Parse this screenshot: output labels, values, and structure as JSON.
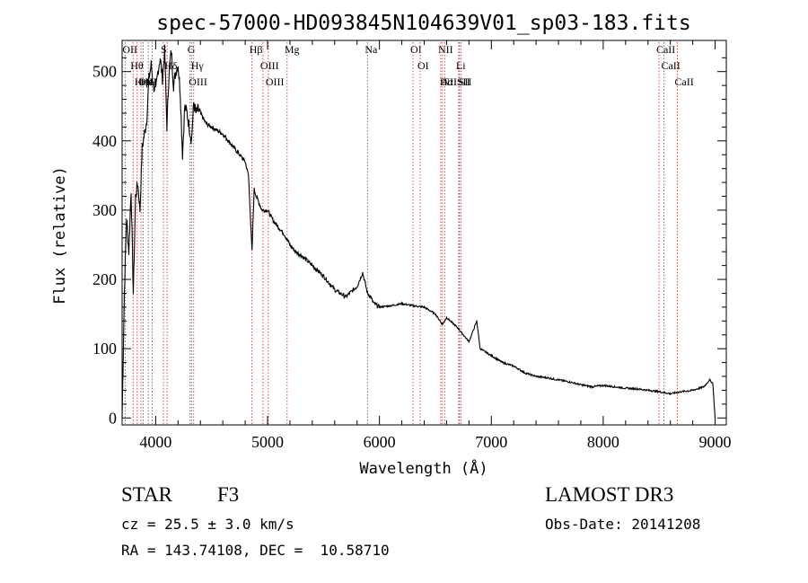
{
  "chart_data": {
    "type": "line",
    "title": "spec-57000-HD093845N104639V01_sp03-183.fits",
    "xlabel": "Wavelength (Å)",
    "ylabel": "Flux (relative)",
    "xlim": [
      3700,
      9100
    ],
    "ylim": [
      -10,
      545
    ],
    "xticks": [
      4000,
      5000,
      6000,
      7000,
      8000,
      9000
    ],
    "yticks": [
      0,
      100,
      200,
      300,
      400,
      500
    ],
    "series": [
      {
        "name": "flux",
        "x": [
          3700,
          3720,
          3740,
          3760,
          3780,
          3800,
          3820,
          3840,
          3860,
          3880,
          3900,
          3920,
          3940,
          3960,
          3980,
          4000,
          4020,
          4040,
          4060,
          4080,
          4100,
          4120,
          4140,
          4160,
          4180,
          4200,
          4220,
          4240,
          4260,
          4280,
          4300,
          4320,
          4340,
          4360,
          4380,
          4400,
          4450,
          4500,
          4550,
          4600,
          4650,
          4700,
          4750,
          4800,
          4830,
          4861,
          4880,
          4900,
          4950,
          5000,
          5050,
          5100,
          5150,
          5200,
          5250,
          5300,
          5400,
          5500,
          5600,
          5700,
          5800,
          5850,
          5893,
          5920,
          5950,
          6000,
          6100,
          6200,
          6300,
          6400,
          6500,
          6563,
          6600,
          6700,
          6800,
          6870,
          6900,
          7000,
          7100,
          7200,
          7300,
          7400,
          7500,
          7600,
          7700,
          7800,
          7900,
          8000,
          8100,
          8200,
          8300,
          8400,
          8500,
          8600,
          8700,
          8800,
          8900,
          8950,
          8980,
          9000
        ],
        "y": [
          0,
          180,
          290,
          240,
          330,
          180,
          320,
          340,
          300,
          390,
          410,
          430,
          490,
          510,
          480,
          470,
          500,
          520,
          490,
          530,
          420,
          500,
          530,
          480,
          500,
          510,
          470,
          380,
          450,
          440,
          420,
          400,
          455,
          440,
          445,
          440,
          425,
          420,
          415,
          410,
          400,
          390,
          380,
          370,
          350,
          240,
          330,
          320,
          300,
          300,
          285,
          275,
          265,
          250,
          240,
          235,
          220,
          205,
          185,
          175,
          190,
          210,
          180,
          175,
          165,
          160,
          162,
          165,
          162,
          160,
          150,
          135,
          145,
          130,
          110,
          140,
          100,
          90,
          80,
          75,
          65,
          60,
          58,
          55,
          52,
          48,
          45,
          47,
          45,
          43,
          42,
          40,
          38,
          35,
          38,
          40,
          45,
          55,
          50,
          0
        ]
      }
    ],
    "lines": [
      {
        "name": "Hθ",
        "wl": 3798
      },
      {
        "name": "OII",
        "wl": 3727
      },
      {
        "name": "OIII",
        "wl": 3869
      },
      {
        "name": "He",
        "wl": 3889
      },
      {
        "name": "Hη",
        "wl": 3835
      },
      {
        "name": "K",
        "wl": 3934
      },
      {
        "name": "H",
        "wl": 3969
      },
      {
        "name": "S",
        "wl": 4069
      },
      {
        "name": "Hδ",
        "wl": 4102
      },
      {
        "name": "OIII",
        "wl": 4320
      },
      {
        "name": "Hγ",
        "wl": 4340
      },
      {
        "name": "G",
        "wl": 4308
      },
      {
        "name": "Hβ",
        "wl": 4861
      },
      {
        "name": "OIII",
        "wl": 4959
      },
      {
        "name": "OIII",
        "wl": 5007
      },
      {
        "name": "Mg",
        "wl": 5175
      },
      {
        "name": "Na",
        "wl": 5893
      },
      {
        "name": "OI",
        "wl": 6300
      },
      {
        "name": "OI",
        "wl": 6364
      },
      {
        "name": "Hα",
        "wl": 6563
      },
      {
        "name": "NII",
        "wl": 6548
      },
      {
        "name": "NII",
        "wl": 6583
      },
      {
        "name": "SII",
        "wl": 6716
      },
      {
        "name": "Li",
        "wl": 6708
      },
      {
        "name": "SII",
        "wl": 6731
      },
      {
        "name": "CaII",
        "wl": 8498
      },
      {
        "name": "CaII",
        "wl": 8542
      },
      {
        "name": "CaII",
        "wl": 8662
      }
    ]
  },
  "info": {
    "class": "STAR",
    "subclass": "F3",
    "survey": "LAMOST DR3",
    "cz": "cz = 25.5 ± 3.0 km/s",
    "obs_date": "Obs-Date: 20141208",
    "coords": "RA = 143.74108, DEC =  10.58710"
  },
  "colors": {
    "axis": "#000000",
    "spectrum": "#000000",
    "line_marker": "#cc2222"
  }
}
